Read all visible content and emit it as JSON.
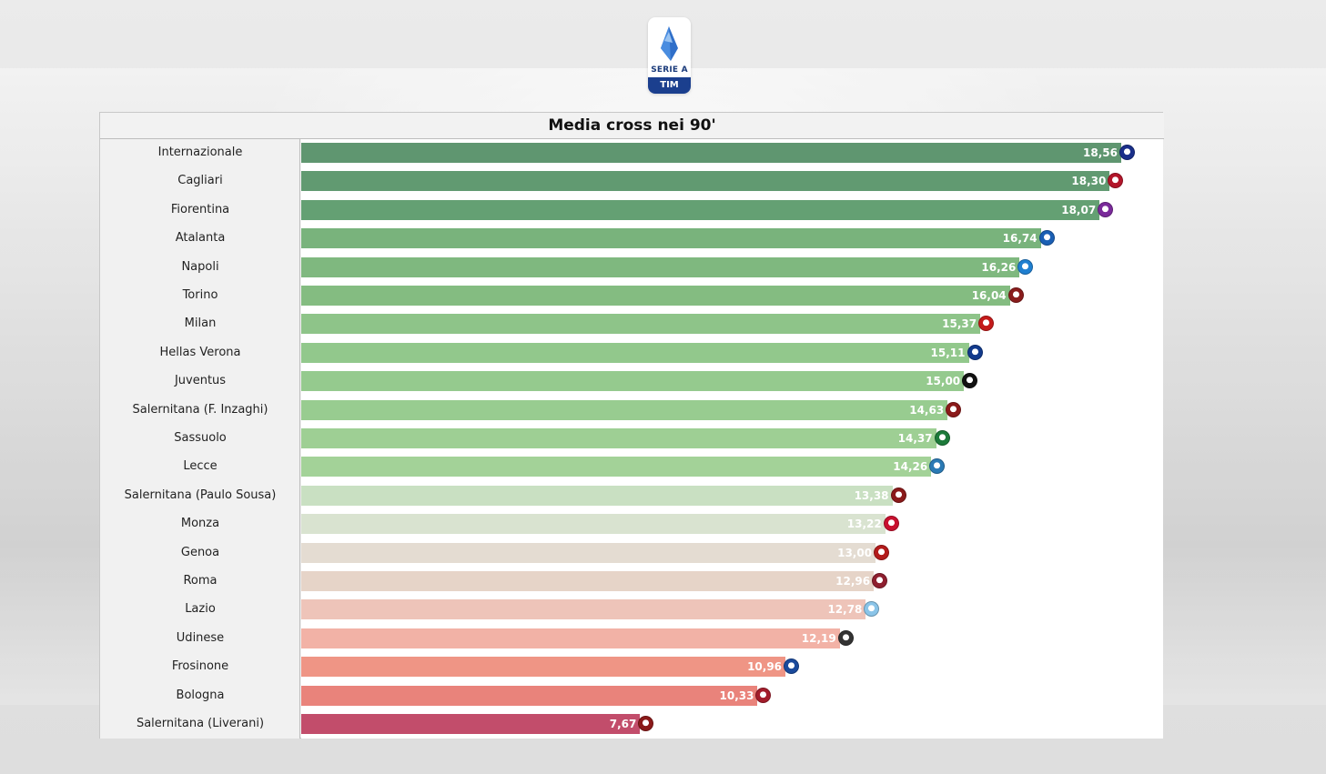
{
  "logo": {
    "line1": "SERIE A",
    "sponsor_a": "TIM",
    "sponsor_b": ""
  },
  "chart_data": {
    "type": "bar",
    "orientation": "horizontal",
    "title": "Media cross nei 90'",
    "xlabel": "",
    "ylabel": "",
    "xlim": [
      0,
      18.56
    ],
    "categories": [
      "Internazionale",
      "Cagliari",
      "Fiorentina",
      "Atalanta",
      "Napoli",
      "Torino",
      "Milan",
      "Hellas Verona",
      "Juventus",
      "Salernitana (F. Inzaghi)",
      "Sassuolo",
      "Lecce",
      "Salernitana (Paulo Sousa)",
      "Monza",
      "Genoa",
      "Roma",
      "Lazio",
      "Udinese",
      "Frosinone",
      "Bologna",
      "Salernitana (Liverani)"
    ],
    "values": [
      18.56,
      18.3,
      18.07,
      16.74,
      16.26,
      16.04,
      15.37,
      15.11,
      15.0,
      14.63,
      14.37,
      14.26,
      13.38,
      13.22,
      13.0,
      12.96,
      12.78,
      12.19,
      10.96,
      10.33,
      7.67
    ],
    "value_labels": [
      "18,56",
      "18,30",
      "18,07",
      "16,74",
      "16,26",
      "16,04",
      "15,37",
      "15,11",
      "15,00",
      "14,63",
      "14,37",
      "14,26",
      "13,38",
      "13,22",
      "13,00",
      "12,96",
      "12,78",
      "12,19",
      "10,96",
      "10,33",
      "7,67"
    ],
    "bar_colors": [
      "#5f9670",
      "#619a71",
      "#64a073",
      "#79b37c",
      "#7fb87f",
      "#84bc81",
      "#8ec489",
      "#92c88c",
      "#95ca8e",
      "#98cc90",
      "#9ecf94",
      "#a3d298",
      "#c9e0c2",
      "#d9e3d0",
      "#e4dcd2",
      "#e6d4c8",
      "#eec4b9",
      "#f2b2a6",
      "#ef9585",
      "#e9837b",
      "#c24d6b"
    ],
    "crest_colors": [
      "#1a2f8a",
      "#b3162a",
      "#7a2a9a",
      "#1a5fb4",
      "#1f7fd0",
      "#8a1c1c",
      "#c41a1a",
      "#123a8c",
      "#111111",
      "#8b1a1a",
      "#1c7a3a",
      "#2a7ab5",
      "#8b1a1a",
      "#c8102e",
      "#b31b1b",
      "#8e1f2f",
      "#8ac4e8",
      "#333333",
      "#1a4a9c",
      "#a31d2b",
      "#8b1a1a"
    ],
    "grid": false,
    "legend": "none"
  }
}
